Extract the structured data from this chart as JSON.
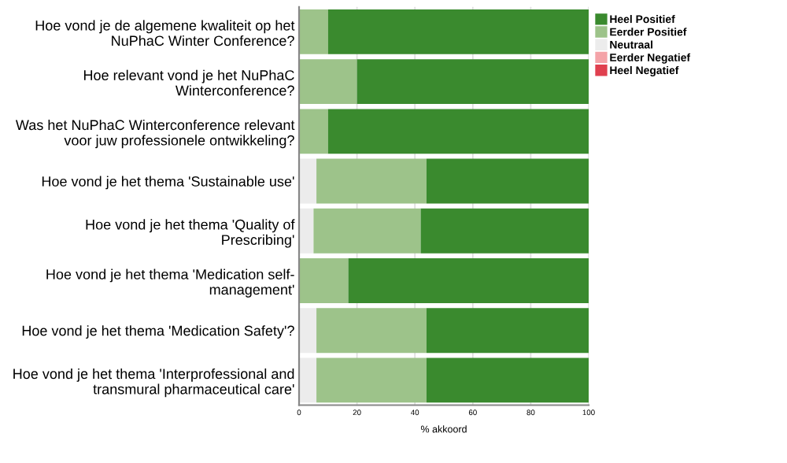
{
  "chart_data": {
    "type": "bar",
    "orientation": "horizontal",
    "stacked": true,
    "xlabel": "% akkoord",
    "categories": [
      "Hoe vond je de algemene kwaliteit op het\nNuPhaC Winter Conference?",
      "Hoe relevant vond je het NuPhaC\nWinterconference?",
      "Was het NuPhaC Winterconference relevant\nvoor juw professionele ontwikkeling?",
      "Hoe vond je het thema 'Sustainable use'",
      "Hoe vond je het thema 'Quality of\nPrescribing'",
      "Hoe vond je het thema 'Medication self-\nmanagement'",
      "Hoe vond je het thema 'Medication Safety'?",
      "Hoe vond je het thema 'Interprofessional and\ntransmural pharmaceutical care'"
    ],
    "series": [
      {
        "name": "Heel Negatief",
        "color": "#e0404f",
        "values": [
          0,
          0,
          0,
          0,
          0,
          0,
          0,
          0
        ]
      },
      {
        "name": "Eerder Negatief",
        "color": "#f4a3a8",
        "values": [
          0,
          0,
          0,
          0,
          0,
          0,
          0,
          0
        ]
      },
      {
        "name": "Neutraal",
        "color": "#ececec",
        "values": [
          0,
          0,
          0,
          6,
          5,
          0,
          6,
          6
        ]
      },
      {
        "name": "Eerder Positief",
        "color": "#9dc38a",
        "values": [
          10,
          20,
          10,
          38,
          37,
          17,
          38,
          38
        ]
      },
      {
        "name": "Heel Positief",
        "color": "#3a8a2e",
        "values": [
          90,
          80,
          90,
          56,
          58,
          83,
          56,
          56
        ]
      }
    ],
    "xlim": [
      0,
      100
    ],
    "xticks": [
      0,
      20,
      40,
      60,
      80,
      100
    ],
    "grid": "x",
    "legend": "top right"
  }
}
